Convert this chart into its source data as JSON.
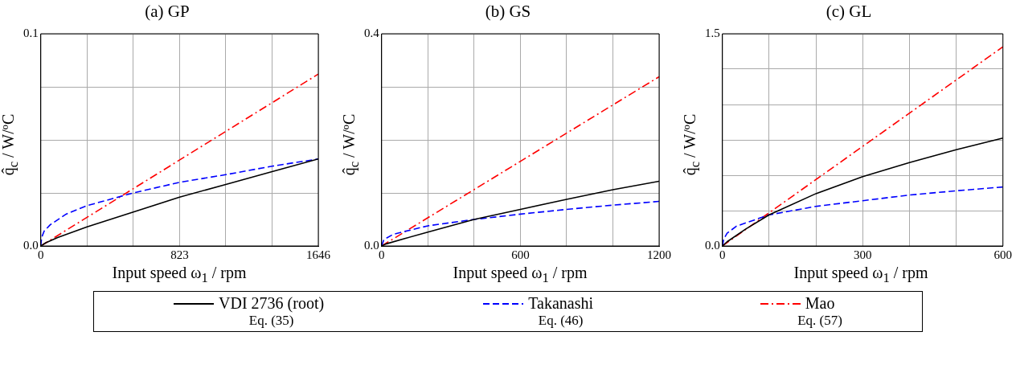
{
  "chart_data": [
    {
      "type": "line",
      "title": "(a) GP",
      "xlabel": "Input speed ω$_{1}$ / rpm",
      "ylabel": "q̂$_{c}$ / W/ºC",
      "xlim": [
        0,
        1646
      ],
      "ylim": [
        0,
        0.1
      ],
      "xticks": [
        0,
        {
          "value": 274.3,
          "label": null
        },
        {
          "value": 548.7,
          "label": null
        },
        823,
        {
          "value": 1097.3,
          "label": null
        },
        {
          "value": 1371.7,
          "label": null
        },
        1646
      ],
      "yticks": [
        {
          "value": 0,
          "label": "0.0"
        },
        {
          "value": 0.025,
          "label": null
        },
        {
          "value": 0.05,
          "label": null
        },
        {
          "value": 0.075,
          "label": null
        },
        0.1
      ],
      "grid": true,
      "marker": "none",
      "series": [
        {
          "color": "#000000",
          "line_style": "solid",
          "x": [
            0,
            30,
            100,
            274,
            549,
            823,
            1097,
            1372,
            1646
          ],
          "values": [
            0,
            0.0015,
            0.004,
            0.009,
            0.016,
            0.023,
            0.029,
            0.035,
            0.041
          ]
        },
        {
          "color": "#0000ff",
          "line_style": "dashed",
          "x": [
            0,
            5,
            20,
            56,
            150,
            274,
            549,
            823,
            1097,
            1372,
            1646
          ],
          "values": [
            0,
            0.004,
            0.007,
            0.01,
            0.015,
            0.019,
            0.025,
            0.03,
            0.0336,
            0.0376,
            0.041
          ]
        },
        {
          "color": "#ff0000",
          "line_style": "dashdot",
          "x": [
            0,
            1646
          ],
          "values": [
            0,
            0.081
          ]
        }
      ]
    },
    {
      "type": "line",
      "title": "(b) GS",
      "xlabel": "Input speed ω$_{1}$ / rpm",
      "ylabel": "q̂$_{c}$ / W/ºC",
      "xlim": [
        0,
        1200
      ],
      "ylim": [
        0,
        0.4
      ],
      "xticks": [
        0,
        {
          "value": 200,
          "label": null
        },
        {
          "value": 400,
          "label": null
        },
        600,
        {
          "value": 800,
          "label": null
        },
        {
          "value": 1000,
          "label": null
        },
        1200
      ],
      "yticks": [
        {
          "value": 0,
          "label": "0.0"
        },
        {
          "value": 0.1,
          "label": null
        },
        {
          "value": 0.2,
          "label": null
        },
        {
          "value": 0.3,
          "label": null
        },
        0.4
      ],
      "grid": true,
      "marker": "none",
      "legend": "bottom",
      "annotations": [
        "Eq. (35)",
        "Eq. (46)",
        "Eq. (57)"
      ],
      "series": [
        {
          "name": "VDI 2736 (root)",
          "color": "#000000",
          "line_style": "solid",
          "x": [
            0,
            20,
            100,
            200,
            400,
            600,
            800,
            1000,
            1200
          ],
          "values": [
            0,
            0.004,
            0.014,
            0.026,
            0.05,
            0.069,
            0.088,
            0.106,
            0.122
          ]
        },
        {
          "name": "Takanashi",
          "color": "#0000ff",
          "line_style": "dashed",
          "x": [
            0,
            10,
            50,
            200,
            400,
            600,
            800,
            1000,
            1200
          ],
          "values": [
            0,
            0.012,
            0.022,
            0.038,
            0.05,
            0.06,
            0.069,
            0.077,
            0.084
          ]
        },
        {
          "name": "Mao",
          "color": "#ff0000",
          "line_style": "dashdot",
          "x": [
            0,
            1200
          ],
          "values": [
            0,
            0.319
          ]
        }
      ]
    },
    {
      "type": "line",
      "title": "(c) GL",
      "xlabel": "Input speed ω$_{1}$ / rpm",
      "ylabel": "q̂$_{c}$ / W/ºC",
      "xlim": [
        0,
        600
      ],
      "ylim": [
        0,
        1.5
      ],
      "xticks": [
        0,
        {
          "value": 100,
          "label": null
        },
        {
          "value": 200,
          "label": null
        },
        300,
        {
          "value": 400,
          "label": null
        },
        {
          "value": 500,
          "label": null
        },
        600
      ],
      "yticks": [
        {
          "value": 0,
          "label": "0.0"
        },
        {
          "value": 0.25,
          "label": null
        },
        {
          "value": 0.5,
          "label": null
        },
        {
          "value": 0.75,
          "label": null
        },
        {
          "value": 1,
          "label": null
        },
        {
          "value": 1.25,
          "label": null
        },
        1.5
      ],
      "grid": true,
      "marker": "none",
      "series": [
        {
          "color": "#000000",
          "line_style": "solid",
          "x": [
            0,
            10,
            50,
            100,
            200,
            300,
            400,
            500,
            600
          ],
          "values": [
            0,
            0.03,
            0.12,
            0.22,
            0.37,
            0.49,
            0.59,
            0.68,
            0.763
          ]
        },
        {
          "color": "#0000ff",
          "line_style": "dashed",
          "x": [
            0,
            3,
            10,
            30,
            100,
            200,
            300,
            400,
            500,
            600
          ],
          "values": [
            0,
            0.05,
            0.09,
            0.14,
            0.22,
            0.28,
            0.32,
            0.36,
            0.39,
            0.417
          ]
        },
        {
          "color": "#ff0000",
          "line_style": "dashdot",
          "x": [
            0,
            600
          ],
          "values": [
            0,
            1.408
          ]
        }
      ]
    }
  ]
}
